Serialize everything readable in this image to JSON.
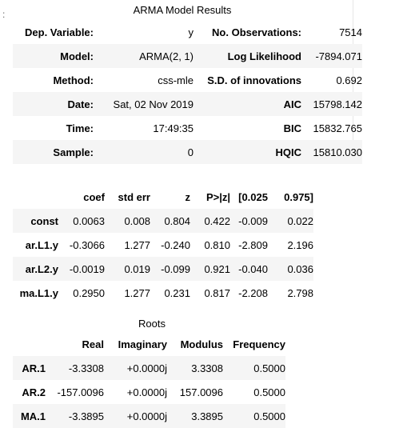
{
  "prompt_marker": ":",
  "summary": {
    "title": "ARMA Model Results",
    "rows": [
      [
        "Dep. Variable:",
        "y",
        "No. Observations:",
        "7514"
      ],
      [
        "Model:",
        "ARMA(2, 1)",
        "Log Likelihood",
        "-7894.071"
      ],
      [
        "Method:",
        "css-mle",
        "S.D. of innovations",
        "0.692"
      ],
      [
        "Date:",
        "Sat, 02 Nov 2019",
        "AIC",
        "15798.142"
      ],
      [
        "Time:",
        "17:49:35",
        "BIC",
        "15832.765"
      ],
      [
        "Sample:",
        "0",
        "HQIC",
        "15810.030"
      ]
    ]
  },
  "coefs": {
    "headers": [
      "",
      "coef",
      "std err",
      "z",
      "P>|z|",
      "[0.025",
      "0.975]"
    ],
    "rows": [
      [
        "const",
        "0.0063",
        "0.008",
        "0.804",
        "0.422",
        "-0.009",
        "0.022"
      ],
      [
        "ar.L1.y",
        "-0.3066",
        "1.277",
        "-0.240",
        "0.810",
        "-2.809",
        "2.196"
      ],
      [
        "ar.L2.y",
        "-0.0019",
        "0.019",
        "-0.099",
        "0.921",
        "-0.040",
        "0.036"
      ],
      [
        "ma.L1.y",
        "0.2950",
        "1.277",
        "0.231",
        "0.817",
        "-2.208",
        "2.798"
      ]
    ]
  },
  "roots": {
    "title": "Roots",
    "headers": [
      "",
      "Real",
      "Imaginary",
      "Modulus",
      "Frequency"
    ],
    "rows": [
      [
        "AR.1",
        "-3.3308",
        "+0.0000j",
        "3.3308",
        "0.5000"
      ],
      [
        "AR.2",
        "-157.0096",
        "+0.0000j",
        "157.0096",
        "0.5000"
      ],
      [
        "MA.1",
        "-3.3895",
        "+0.0000j",
        "3.3895",
        "0.5000"
      ]
    ]
  }
}
